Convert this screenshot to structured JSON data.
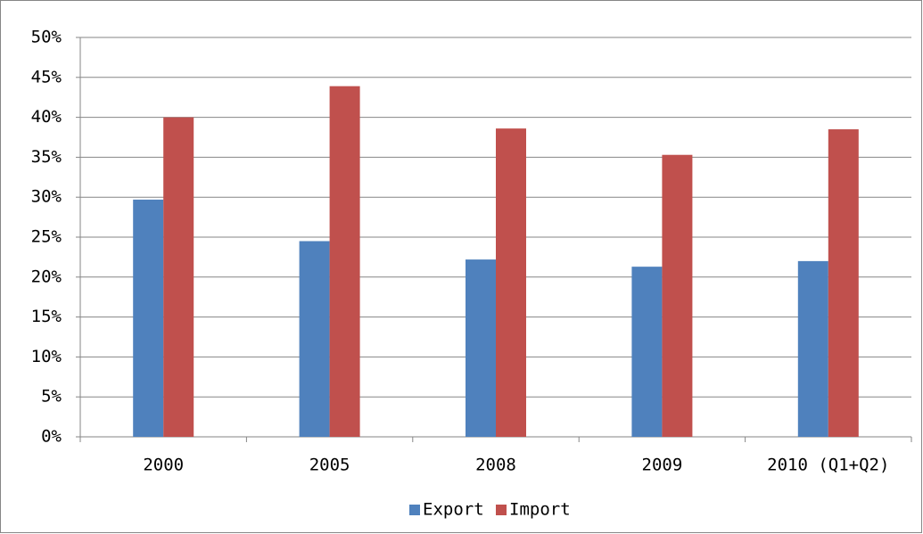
{
  "chart_data": {
    "type": "bar",
    "categories": [
      "2000",
      "2005",
      "2008",
      "2009",
      "2010 (Q1+Q2)"
    ],
    "series": [
      {
        "name": "Export",
        "color": "#4f81bd",
        "values": [
          29.7,
          24.5,
          22.2,
          21.3,
          22.0
        ]
      },
      {
        "name": "Import",
        "color": "#c0504d",
        "values": [
          40.0,
          43.9,
          38.6,
          35.3,
          38.5
        ]
      }
    ],
    "ylim": [
      0,
      50
    ],
    "yticks": [
      {
        "value": 0,
        "label": "0%"
      },
      {
        "value": 5,
        "label": "5%"
      },
      {
        "value": 10,
        "label": "10%"
      },
      {
        "value": 15,
        "label": "15%"
      },
      {
        "value": 20,
        "label": "20%"
      },
      {
        "value": 25,
        "label": "25%"
      },
      {
        "value": 30,
        "label": "30%"
      },
      {
        "value": 35,
        "label": "35%"
      },
      {
        "value": 40,
        "label": "40%"
      },
      {
        "value": 45,
        "label": "45%"
      },
      {
        "value": 50,
        "label": "50%"
      }
    ],
    "grid": true,
    "legend": "bottom"
  }
}
